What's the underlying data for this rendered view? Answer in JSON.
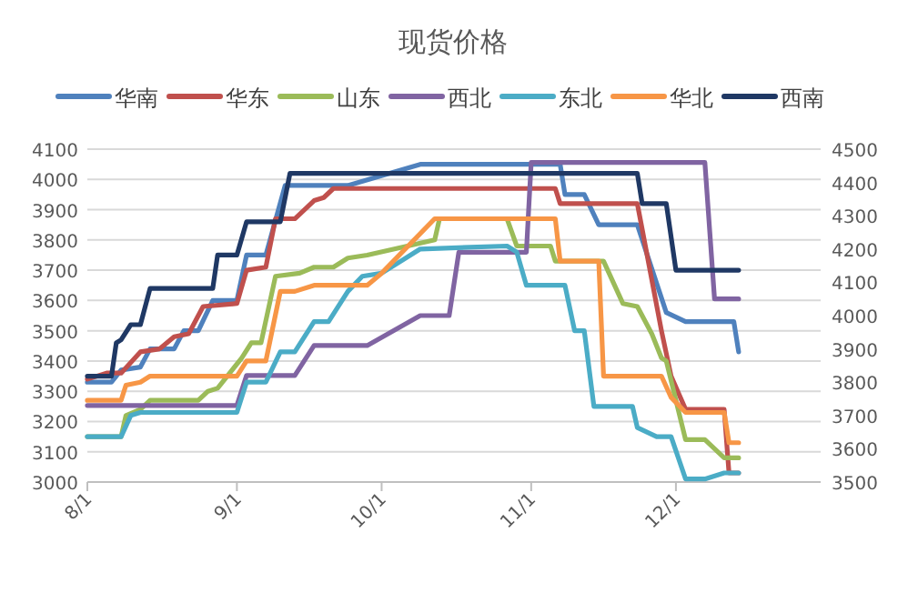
{
  "chart_data": {
    "type": "line",
    "title": "现货价格",
    "legend": "top",
    "grid": "y",
    "marker": "none",
    "line_style": "solid",
    "xlim": [
      "--08-01",
      "--12-31"
    ],
    "xticks": [
      {
        "value": "--08-01",
        "label": "8/1"
      },
      {
        "value": "--09-01",
        "label": "9/1"
      },
      {
        "value": "--10-01",
        "label": "10/1"
      },
      {
        "value": "--11-01",
        "label": "11/1"
      },
      {
        "value": "--12-01",
        "label": "12/1"
      }
    ],
    "ylim": [
      3000,
      4100
    ],
    "yticks": [
      3000,
      3100,
      3200,
      3300,
      3400,
      3500,
      3600,
      3700,
      3800,
      3900,
      4000,
      4100
    ],
    "y2lim": [
      3500,
      4500
    ],
    "y2ticks": [
      3500,
      3600,
      3700,
      3800,
      3900,
      4000,
      4100,
      4200,
      4300,
      4400,
      4500
    ],
    "series": [
      {
        "name": "华南",
        "color": "#4f81bd",
        "x": [
          "--08-01",
          "--08-06",
          "--08-08",
          "--08-12",
          "--08-14",
          "--08-19",
          "--08-21",
          "--08-24",
          "--08-27",
          "--09-01",
          "--09-03",
          "--09-07",
          "--09-11",
          "--09-24",
          "--10-09",
          "--11-07",
          "--11-08",
          "--11-12",
          "--11-15",
          "--11-23",
          "--11-29",
          "--12-03",
          "--12-13",
          "--12-14"
        ],
        "values": [
          3330,
          3330,
          3370,
          3380,
          3440,
          3440,
          3500,
          3500,
          3600,
          3600,
          3750,
          3750,
          3980,
          3980,
          4050,
          4050,
          3950,
          3950,
          3850,
          3850,
          3560,
          3530,
          3530,
          3430
        ]
      },
      {
        "name": "华东",
        "color": "#c0504d",
        "x": [
          "--08-01",
          "--08-05",
          "--08-08",
          "--08-12",
          "--08-16",
          "--08-19",
          "--08-22",
          "--08-25",
          "--09-01",
          "--09-03",
          "--09-07",
          "--09-09",
          "--09-13",
          "--09-17",
          "--09-19",
          "--09-21",
          "--11-06",
          "--11-07",
          "--11-23",
          "--11-28",
          "--11-30",
          "--12-03",
          "--12-11",
          "--12-12",
          "--12-14"
        ],
        "values": [
          3340,
          3360,
          3360,
          3430,
          3440,
          3480,
          3490,
          3580,
          3590,
          3700,
          3710,
          3870,
          3870,
          3930,
          3940,
          3970,
          3970,
          3920,
          3920,
          3500,
          3350,
          3240,
          3240,
          3030,
          3030
        ]
      },
      {
        "name": "山东",
        "color": "#9bbb59",
        "x": [
          "--08-01",
          "--08-08",
          "--08-09",
          "--08-12",
          "--08-14",
          "--08-24",
          "--08-26",
          "--08-28",
          "--09-02",
          "--09-04",
          "--09-06",
          "--09-09",
          "--09-14",
          "--09-17",
          "--09-21",
          "--09-24",
          "--09-28",
          "--10-12",
          "--10-13",
          "--10-27",
          "--10-29",
          "--11-05",
          "--11-06",
          "--11-16",
          "--11-20",
          "--11-23",
          "--11-26",
          "--11-28",
          "--11-29",
          "--12-03",
          "--12-07",
          "--12-11",
          "--12-14"
        ],
        "values": [
          3150,
          3150,
          3220,
          3240,
          3270,
          3270,
          3300,
          3310,
          3410,
          3460,
          3460,
          3680,
          3690,
          3710,
          3710,
          3740,
          3750,
          3800,
          3870,
          3870,
          3780,
          3780,
          3730,
          3730,
          3590,
          3580,
          3490,
          3410,
          3400,
          3140,
          3140,
          3080,
          3080
        ]
      },
      {
        "name": "西北",
        "color": "#8064a2",
        "axis": "y2",
        "x": [
          "--08-01",
          "--09-01",
          "--09-03",
          "--09-13",
          "--09-17",
          "--09-28",
          "--10-09",
          "--10-15",
          "--10-17",
          "--10-31",
          "--11-01",
          "--12-07",
          "--12-09",
          "--12-14"
        ],
        "values": [
          3730,
          3730,
          3820,
          3820,
          3910,
          3910,
          4000,
          4000,
          4190,
          4190,
          4460,
          4460,
          4050,
          4050
        ]
      },
      {
        "name": "东北",
        "color": "#4bacc6",
        "x": [
          "--08-01",
          "--08-08",
          "--08-10",
          "--08-12",
          "--09-01",
          "--09-03",
          "--09-07",
          "--09-10",
          "--09-13",
          "--09-17",
          "--09-20",
          "--09-24",
          "--09-27",
          "--10-01",
          "--10-09",
          "--10-27",
          "--10-29",
          "--10-31",
          "--11-08",
          "--11-10",
          "--11-12",
          "--11-14",
          "--11-22",
          "--11-23",
          "--11-27",
          "--11-30",
          "--12-03",
          "--12-07",
          "--12-11",
          "--12-14"
        ],
        "values": [
          3150,
          3150,
          3220,
          3230,
          3230,
          3330,
          3330,
          3430,
          3430,
          3530,
          3530,
          3630,
          3680,
          3690,
          3770,
          3780,
          3760,
          3650,
          3650,
          3500,
          3500,
          3250,
          3250,
          3180,
          3150,
          3150,
          3010,
          3010,
          3030,
          3030
        ]
      },
      {
        "name": "华北",
        "color": "#f79646",
        "x": [
          "--08-01",
          "--08-08",
          "--08-09",
          "--08-12",
          "--08-14",
          "--09-01",
          "--09-03",
          "--09-07",
          "--09-10",
          "--09-13",
          "--09-17",
          "--09-28",
          "--10-01",
          "--10-12",
          "--11-06",
          "--11-07",
          "--11-15",
          "--11-16",
          "--11-28",
          "--11-30",
          "--12-03",
          "--12-11",
          "--12-12",
          "--12-14"
        ],
        "values": [
          3270,
          3270,
          3320,
          3330,
          3350,
          3350,
          3400,
          3400,
          3630,
          3630,
          3650,
          3650,
          3690,
          3870,
          3870,
          3730,
          3730,
          3350,
          3350,
          3280,
          3230,
          3230,
          3130,
          3130
        ]
      },
      {
        "name": "西南",
        "color": "#1f3864",
        "x": [
          "--08-01",
          "--08-06",
          "--08-07",
          "--08-08",
          "--08-10",
          "--08-12",
          "--08-14",
          "--08-27",
          "--08-28",
          "--09-01",
          "--09-03",
          "--09-10",
          "--09-12",
          "--11-23",
          "--11-24",
          "--11-29",
          "--12-01",
          "--12-14"
        ],
        "values": [
          3350,
          3350,
          3460,
          3470,
          3520,
          3520,
          3640,
          3640,
          3750,
          3750,
          3860,
          3860,
          4020,
          4020,
          3920,
          3920,
          3700,
          3700
        ]
      }
    ]
  }
}
